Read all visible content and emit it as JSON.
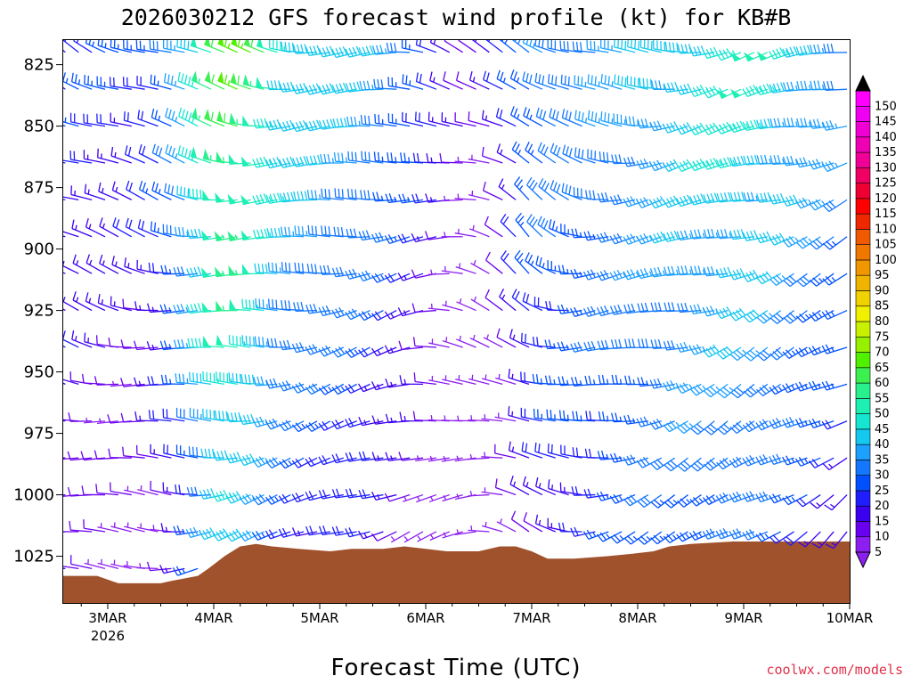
{
  "chart_data": {
    "type": "wind_barb_profile",
    "title": "2026030212 GFS forecast wind profile (kt) for KB#B",
    "xlabel": "Forecast Time (UTC)",
    "ylabel": "",
    "x_ticks": [
      {
        "label": "3MAR",
        "sub": "2026",
        "t": 0
      },
      {
        "label": "4MAR",
        "t": 1
      },
      {
        "label": "5MAR",
        "t": 2
      },
      {
        "label": "6MAR",
        "t": 3
      },
      {
        "label": "7MAR",
        "t": 4
      },
      {
        "label": "8MAR",
        "t": 5
      },
      {
        "label": "9MAR",
        "t": 6
      },
      {
        "label": "10MAR",
        "t": 7
      }
    ],
    "x_range_days": [
      -0.42,
      7.0
    ],
    "y_ticks": [
      825,
      850,
      875,
      900,
      925,
      950,
      975,
      1000,
      1025
    ],
    "y_range_hpa": [
      815,
      1044
    ],
    "wind_levels_hpa": [
      820,
      835,
      850,
      865,
      880,
      895,
      910,
      925,
      940,
      955,
      970,
      985,
      1000,
      1015,
      1030
    ],
    "colorbar": {
      "levels": [
        5,
        10,
        15,
        20,
        25,
        30,
        35,
        40,
        45,
        50,
        55,
        60,
        65,
        70,
        75,
        80,
        85,
        90,
        95,
        100,
        105,
        110,
        115,
        120,
        125,
        130,
        135,
        140,
        145,
        150
      ],
      "labels": [
        "5",
        "10",
        "15",
        "20",
        "25",
        "30",
        "35",
        "40",
        "45",
        "50",
        "55",
        "60",
        "65",
        "70",
        "75",
        "80",
        "85",
        "90",
        "95",
        "100",
        "105",
        "110",
        "115",
        "120",
        "125",
        "130",
        "135",
        "140",
        "145",
        "150"
      ],
      "colors": [
        "#8c1ef0",
        "#6a00f0",
        "#3c00f0",
        "#1e1eff",
        "#0050ff",
        "#1478ff",
        "#1ea0ff",
        "#14c8f0",
        "#14e6d2",
        "#1ef0b4",
        "#28f08c",
        "#3cf050",
        "#50f000",
        "#96f000",
        "#c8f000",
        "#f0f000",
        "#f0d200",
        "#f0b400",
        "#f09600",
        "#f07800",
        "#f05a00",
        "#f02800",
        "#ff0000",
        "#f00032",
        "#f00064",
        "#f00096",
        "#f000b4",
        "#f000d2",
        "#f000f0",
        "#ff00ff"
      ],
      "upper_arrow": "#000000",
      "lower_arrow": "#8c1ef0"
    },
    "terrain": {
      "color": "#a0522d",
      "surface_pressure_hpa": [
        [
          -0.42,
          1033
        ],
        [
          -0.1,
          1033
        ],
        [
          0.1,
          1036
        ],
        [
          0.5,
          1036
        ],
        [
          0.6,
          1035
        ],
        [
          0.85,
          1033
        ],
        [
          0.95,
          1030
        ],
        [
          1.1,
          1025
        ],
        [
          1.25,
          1021
        ],
        [
          1.4,
          1020
        ],
        [
          1.55,
          1021
        ],
        [
          1.8,
          1022
        ],
        [
          2.1,
          1023
        ],
        [
          2.3,
          1022
        ],
        [
          2.6,
          1022
        ],
        [
          2.8,
          1021
        ],
        [
          3.2,
          1023
        ],
        [
          3.5,
          1023
        ],
        [
          3.7,
          1021
        ],
        [
          3.85,
          1021
        ],
        [
          4.0,
          1023
        ],
        [
          4.15,
          1026
        ],
        [
          4.4,
          1026
        ],
        [
          4.7,
          1025
        ],
        [
          4.95,
          1024
        ],
        [
          5.15,
          1023
        ],
        [
          5.3,
          1021
        ],
        [
          5.5,
          1020
        ],
        [
          5.9,
          1019
        ],
        [
          6.5,
          1019
        ],
        [
          7.0,
          1019
        ]
      ]
    },
    "credit": "coolwx.com/models"
  }
}
